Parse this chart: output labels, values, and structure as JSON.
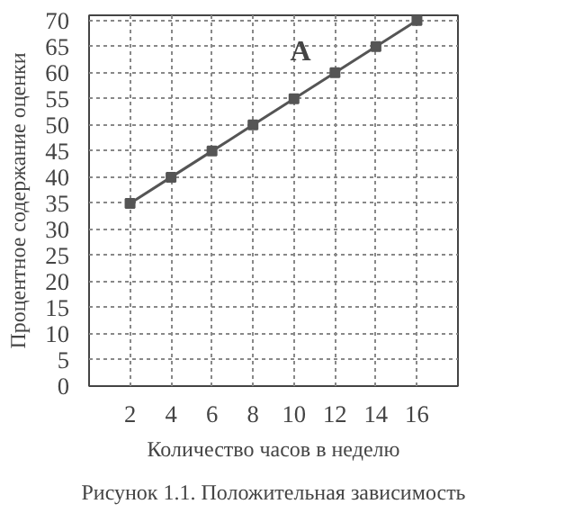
{
  "chart_data": {
    "type": "line",
    "xlabel": "Количество часов в неделю",
    "ylabel": "Процентное содержание оценки",
    "annotations": [
      "Рисунок 1.1. Положительная зависимость",
      {
        "text": "A",
        "x": 11,
        "y": 57.5
      }
    ],
    "x": [
      2,
      4,
      6,
      8,
      10,
      12,
      14,
      16
    ],
    "series": [
      {
        "color": "#555555",
        "values": [
          35,
          40,
          45,
          50,
          55,
          60,
          65,
          70
        ]
      }
    ],
    "xlim": [
      0,
      18
    ],
    "ylim": [
      0,
      71
    ],
    "xticks": [
      2,
      4,
      6,
      8,
      10,
      12,
      14,
      16
    ],
    "yticks": [
      0,
      5,
      10,
      15,
      20,
      25,
      30,
      35,
      40,
      45,
      50,
      55,
      60,
      65,
      70
    ],
    "grid": true,
    "marker": "square",
    "line_style": "solid"
  }
}
